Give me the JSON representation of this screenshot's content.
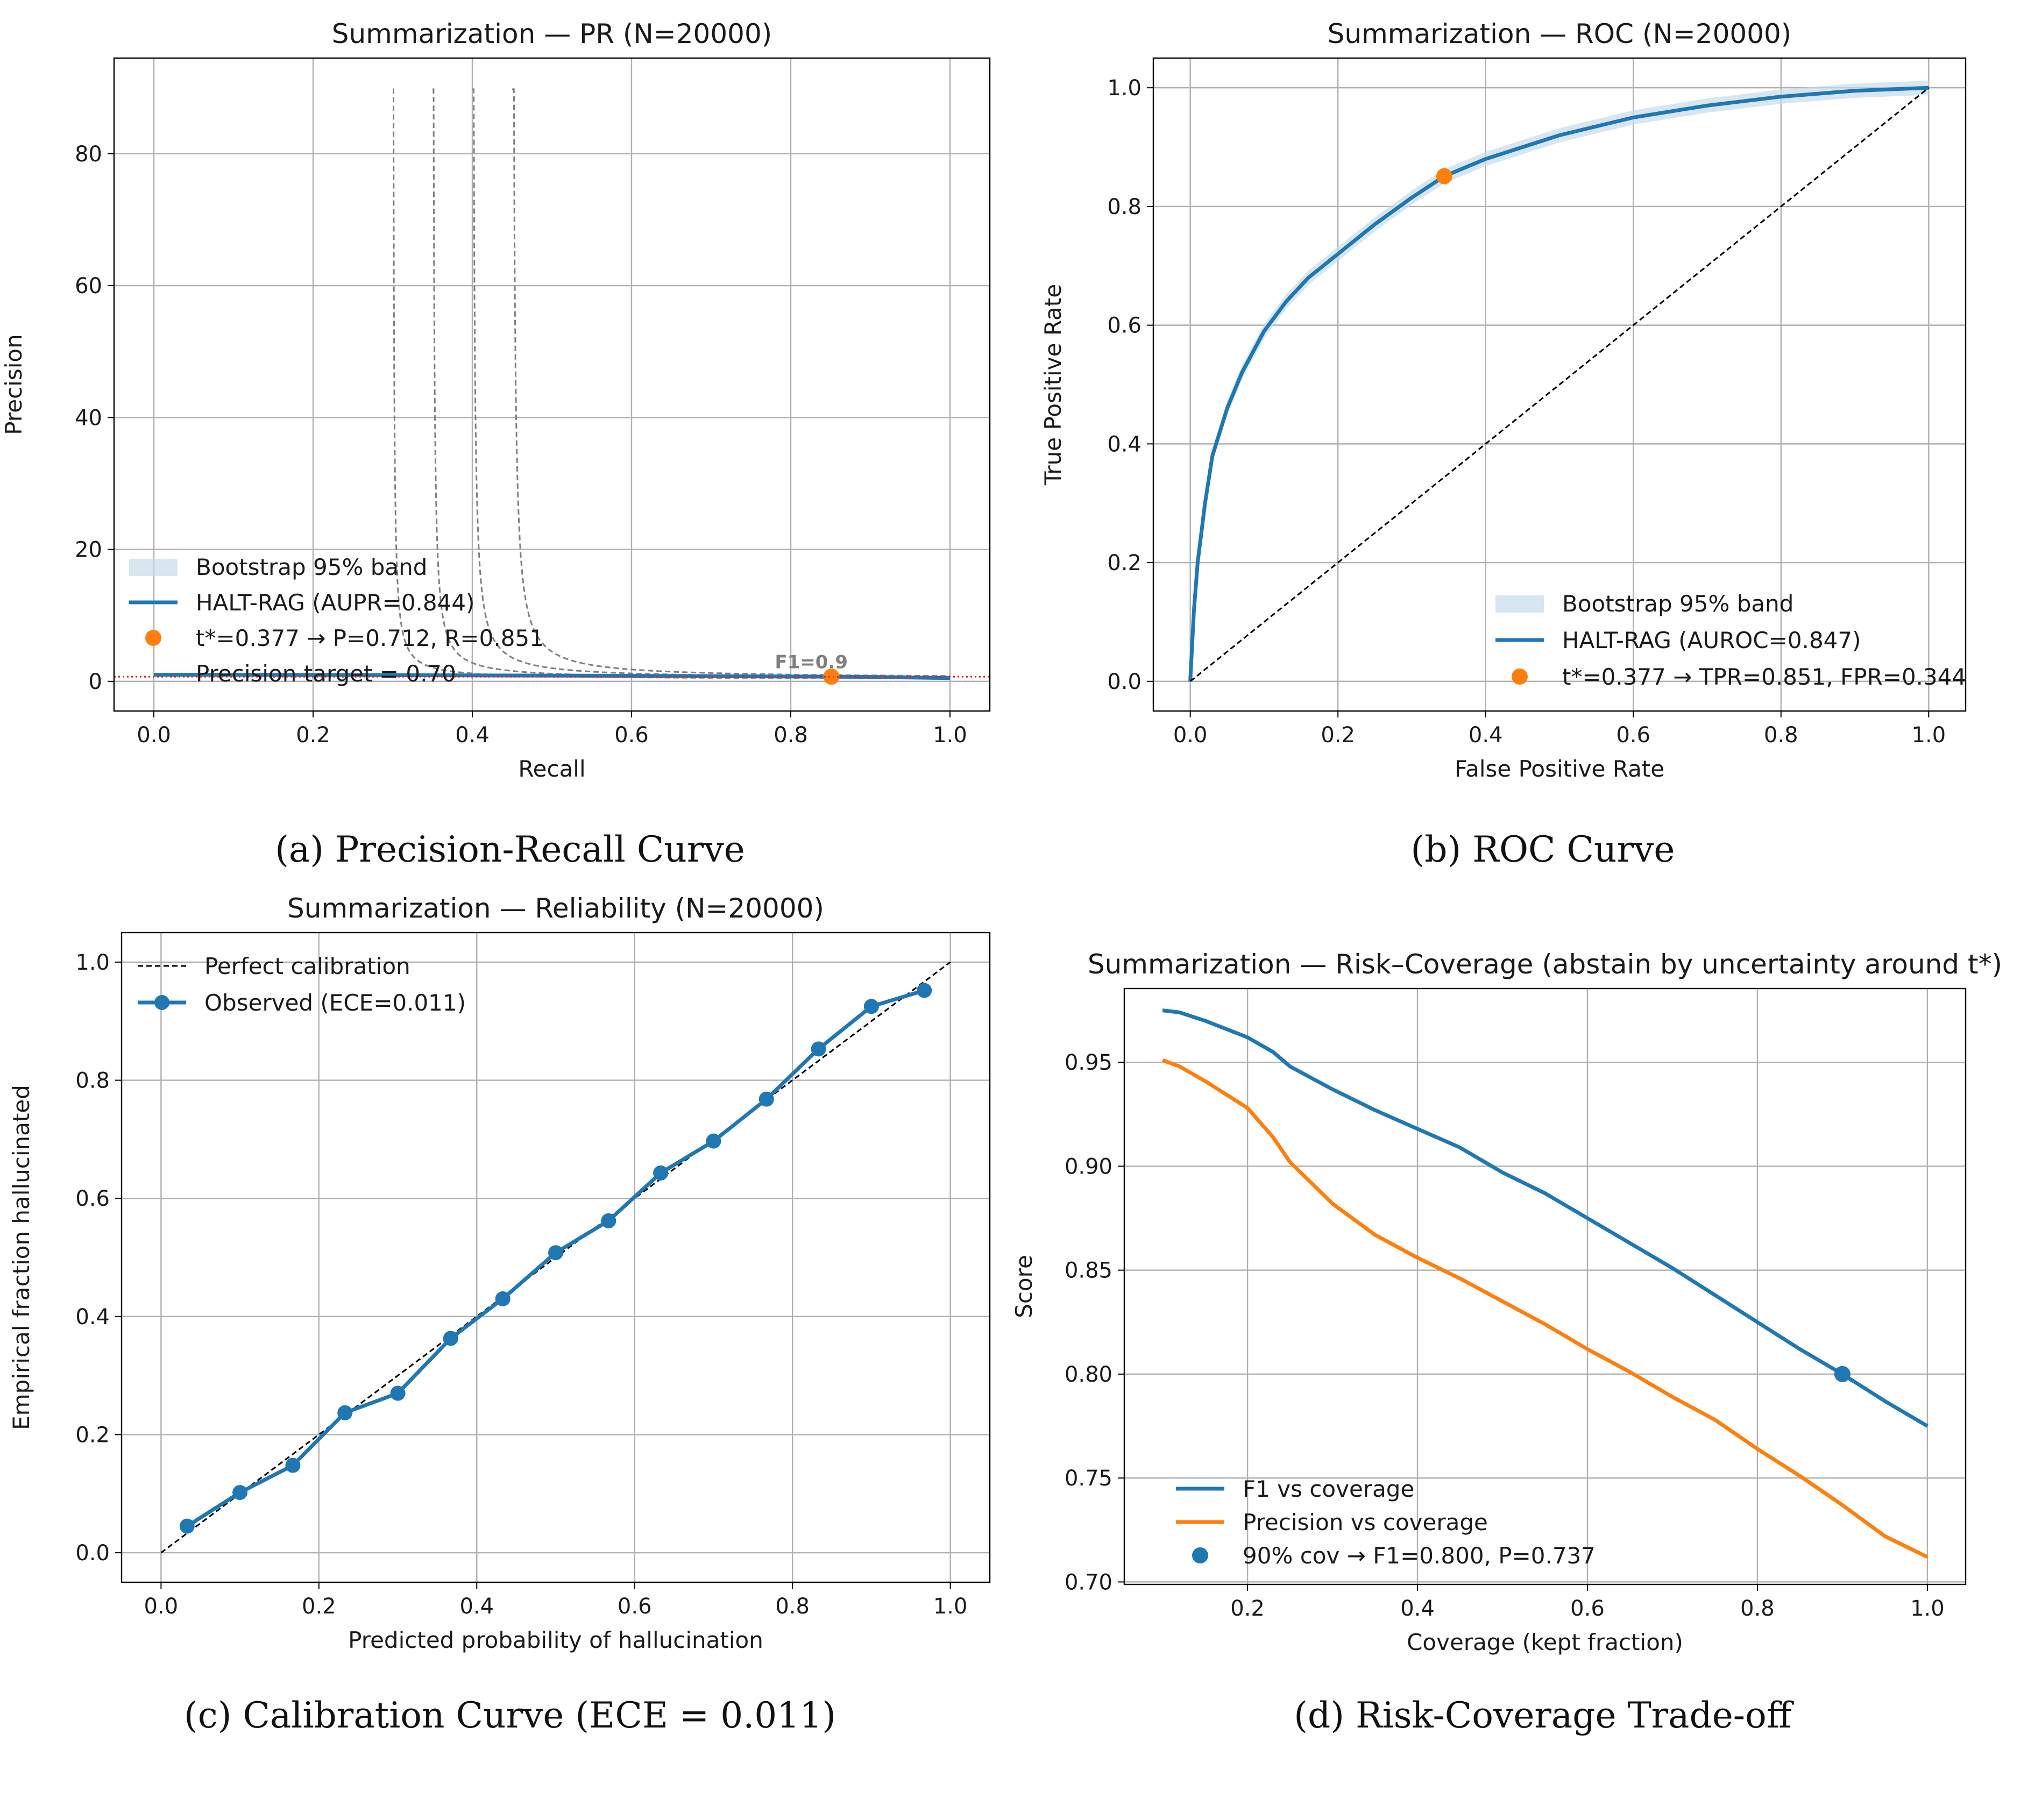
{
  "colors": {
    "blue": "#1f77b4",
    "orange": "#ff7f0e",
    "band": "#c6dbea",
    "grid": "#b0b0b0",
    "iso": "#7f7f7f",
    "target": "#d62728",
    "diag": "#000000"
  },
  "captions": {
    "a": "(a) Precision-Recall Curve",
    "b": "(b) ROC Curve",
    "c": "(c) Calibration Curve (ECE = 0.011)",
    "d": "(d) Risk-Coverage Trade-off"
  },
  "chart_data": [
    {
      "id": "pr",
      "type": "line",
      "title": "Summarization — PR (N=20000)",
      "xlabel": "Recall",
      "ylabel": "Precision",
      "xlim": [
        -0.05,
        1.05
      ],
      "ylim": [
        -4.5,
        94.5
      ],
      "xticks": [
        0.0,
        0.2,
        0.4,
        0.6,
        0.8,
        1.0
      ],
      "xtick_labels": [
        "0.0",
        "0.2",
        "0.4",
        "0.6",
        "0.8",
        "1.0"
      ],
      "yticks": [
        0,
        20,
        40,
        60,
        80
      ],
      "ytick_labels": [
        "0",
        "20",
        "40",
        "60",
        "80"
      ],
      "grid": true,
      "legend_position": "lower-left",
      "series": [
        {
          "name": "HALT-RAG (AUPR=0.844)",
          "style": "line",
          "color": "#1f77b4",
          "x": [
            0.0,
            0.05,
            0.1,
            0.2,
            0.3,
            0.4,
            0.5,
            0.6,
            0.7,
            0.8,
            0.85,
            0.9,
            1.0
          ],
          "y": [
            1.0,
            1.0,
            0.98,
            0.96,
            0.93,
            0.9,
            0.87,
            0.83,
            0.78,
            0.73,
            0.71,
            0.67,
            0.5
          ]
        },
        {
          "name": "t*=0.377 → P=0.712, R=0.851",
          "style": "point",
          "color": "#ff7f0e",
          "x": [
            0.851
          ],
          "y": [
            0.712
          ]
        },
        {
          "name": "Precision target = 0.70",
          "style": "hline",
          "color": "#d62728",
          "y": 0.7
        }
      ],
      "band": {
        "name": "Bootstrap 95% band"
      },
      "iso_f1": {
        "f1_values": [
          0.6,
          0.7,
          0.8,
          0.9
        ],
        "label": "F1=0.9"
      }
    },
    {
      "id": "roc",
      "type": "line",
      "title": "Summarization — ROC (N=20000)",
      "xlabel": "False Positive Rate",
      "ylabel": "True Positive Rate",
      "xlim": [
        -0.05,
        1.05
      ],
      "ylim": [
        -0.05,
        1.05
      ],
      "xticks": [
        0.0,
        0.2,
        0.4,
        0.6,
        0.8,
        1.0
      ],
      "xtick_labels": [
        "0.0",
        "0.2",
        "0.4",
        "0.6",
        "0.8",
        "1.0"
      ],
      "yticks": [
        0.0,
        0.2,
        0.4,
        0.6,
        0.8,
        1.0
      ],
      "ytick_labels": [
        "0.0",
        "0.2",
        "0.4",
        "0.6",
        "0.8",
        "1.0"
      ],
      "grid": true,
      "legend_position": "lower-right",
      "series": [
        {
          "name": "HALT-RAG (AUROC=0.847)",
          "style": "line",
          "color": "#1f77b4",
          "x": [
            0.0,
            0.005,
            0.01,
            0.02,
            0.03,
            0.05,
            0.07,
            0.1,
            0.13,
            0.16,
            0.2,
            0.25,
            0.3,
            0.344,
            0.4,
            0.45,
            0.5,
            0.6,
            0.7,
            0.8,
            0.9,
            1.0
          ],
          "y": [
            0.0,
            0.12,
            0.2,
            0.3,
            0.38,
            0.46,
            0.52,
            0.59,
            0.64,
            0.68,
            0.72,
            0.77,
            0.815,
            0.851,
            0.88,
            0.9,
            0.92,
            0.95,
            0.97,
            0.985,
            0.995,
            1.0
          ]
        },
        {
          "name": "t*=0.377 → TPR=0.851, FPR=0.344",
          "style": "point",
          "color": "#ff7f0e",
          "x": [
            0.344
          ],
          "y": [
            0.851
          ]
        },
        {
          "name": "",
          "style": "diagonal",
          "color": "#000000"
        }
      ],
      "band": {
        "name": "Bootstrap 95% band"
      }
    },
    {
      "id": "calib",
      "type": "line",
      "title": "Summarization — Reliability (N=20000)",
      "xlabel": "Predicted probability of hallucination",
      "ylabel": "Empirical fraction hallucinated",
      "xlim": [
        -0.05,
        1.05
      ],
      "ylim": [
        -0.05,
        1.05
      ],
      "xticks": [
        0.0,
        0.2,
        0.4,
        0.6,
        0.8,
        1.0
      ],
      "xtick_labels": [
        "0.0",
        "0.2",
        "0.4",
        "0.6",
        "0.8",
        "1.0"
      ],
      "yticks": [
        0.0,
        0.2,
        0.4,
        0.6,
        0.8,
        1.0
      ],
      "ytick_labels": [
        "0.0",
        "0.2",
        "0.4",
        "0.6",
        "0.8",
        "1.0"
      ],
      "grid": true,
      "legend_position": "upper-left",
      "series": [
        {
          "name": "Perfect calibration",
          "style": "diagonal",
          "color": "#000000"
        },
        {
          "name": "Observed (ECE=0.011)",
          "style": "line-markers",
          "color": "#1f77b4",
          "x": [
            0.033,
            0.1,
            0.167,
            0.233,
            0.3,
            0.367,
            0.433,
            0.5,
            0.567,
            0.633,
            0.7,
            0.767,
            0.833,
            0.9,
            0.967
          ],
          "y": [
            0.045,
            0.102,
            0.148,
            0.237,
            0.27,
            0.363,
            0.43,
            0.508,
            0.562,
            0.643,
            0.697,
            0.768,
            0.853,
            0.925,
            0.952
          ]
        }
      ]
    },
    {
      "id": "risk",
      "type": "line",
      "title": "Summarization — Risk–Coverage (abstain by uncertainty around t*)",
      "xlabel": "Coverage (kept fraction)",
      "ylabel": "Score",
      "xlim": [
        0.055,
        1.045
      ],
      "ylim": [
        0.6988,
        0.9855
      ],
      "xticks": [
        0.2,
        0.4,
        0.6,
        0.8,
        1.0
      ],
      "xtick_labels": [
        "0.2",
        "0.4",
        "0.6",
        "0.8",
        "1.0"
      ],
      "yticks": [
        0.7,
        0.75,
        0.8,
        0.85,
        0.9,
        0.95
      ],
      "ytick_labels": [
        "0.70",
        "0.75",
        "0.80",
        "0.85",
        "0.90",
        "0.95"
      ],
      "grid": true,
      "legend_position": "lower-left",
      "series": [
        {
          "name": "F1 vs coverage",
          "style": "line",
          "color": "#1f77b4",
          "x": [
            0.1,
            0.12,
            0.15,
            0.2,
            0.23,
            0.25,
            0.3,
            0.35,
            0.4,
            0.45,
            0.5,
            0.55,
            0.6,
            0.65,
            0.7,
            0.75,
            0.8,
            0.85,
            0.9,
            0.95,
            1.0
          ],
          "y": [
            0.975,
            0.974,
            0.97,
            0.962,
            0.955,
            0.948,
            0.937,
            0.927,
            0.918,
            0.909,
            0.897,
            0.887,
            0.875,
            0.863,
            0.851,
            0.838,
            0.825,
            0.812,
            0.8,
            0.787,
            0.775
          ]
        },
        {
          "name": "Precision vs coverage",
          "style": "line",
          "color": "#ff7f0e",
          "x": [
            0.1,
            0.12,
            0.15,
            0.2,
            0.23,
            0.25,
            0.3,
            0.35,
            0.4,
            0.45,
            0.5,
            0.55,
            0.6,
            0.65,
            0.7,
            0.75,
            0.8,
            0.85,
            0.9,
            0.95,
            1.0
          ],
          "y": [
            0.951,
            0.948,
            0.941,
            0.928,
            0.914,
            0.902,
            0.882,
            0.867,
            0.856,
            0.846,
            0.835,
            0.824,
            0.812,
            0.801,
            0.789,
            0.778,
            0.764,
            0.751,
            0.737,
            0.722,
            0.712
          ]
        },
        {
          "name": "90% cov → F1=0.800, P=0.737",
          "style": "point",
          "color": "#1f77b4",
          "x": [
            0.9
          ],
          "y": [
            0.8
          ]
        }
      ]
    }
  ]
}
